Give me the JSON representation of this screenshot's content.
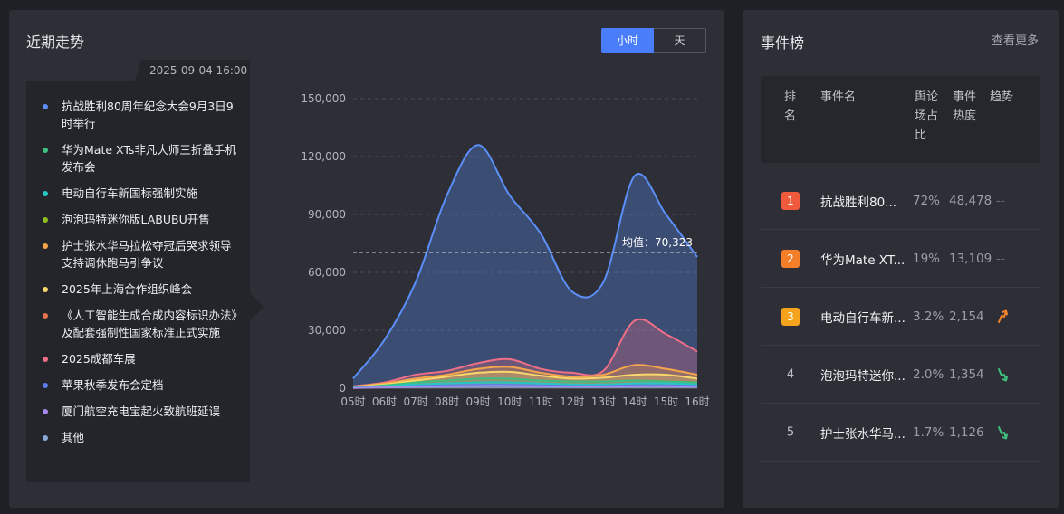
{
  "left": {
    "title": "近期走势",
    "toggle": {
      "hour": "小时",
      "day": "天"
    }
  },
  "tooltip": {
    "time": "2025-09-04 16:00",
    "items": [
      {
        "label": "抗战胜利80周年纪念大会9月3日9时举行",
        "color": "#5b8ff9"
      },
      {
        "label": "华为Mate XTs非凡大师三折叠手机发布会",
        "color": "#3fbf7f"
      },
      {
        "label": "电动自行车新国标强制实施",
        "color": "#26c6c6"
      },
      {
        "label": "泡泡玛特迷你版LABUBU开售",
        "color": "#8fbf1f"
      },
      {
        "label": "护士张水华马拉松夺冠后哭求领导支持调休跑马引争议",
        "color": "#f5a54b"
      },
      {
        "label": "2025年上海合作组织峰会",
        "color": "#f9d86b"
      },
      {
        "label": "《人工智能生成合成内容标识办法》及配套强制性国家标准正式实施",
        "color": "#e8744f"
      },
      {
        "label": "2025成都车展",
        "color": "#ee6f86"
      },
      {
        "label": "苹果秋季发布会定档",
        "color": "#5b7fe8"
      },
      {
        "label": "厦门航空充电宝起火致航班延误",
        "color": "#a58ae8"
      },
      {
        "label": "其他",
        "color": "#8aa8d8"
      }
    ]
  },
  "chart_data": {
    "type": "area",
    "categories": [
      "05时",
      "06时",
      "07时",
      "08时",
      "09时",
      "10时",
      "11时",
      "12时",
      "13时",
      "14时",
      "15时",
      "16时"
    ],
    "ylim": [
      0,
      150000
    ],
    "yticks": [
      0,
      30000,
      60000,
      90000,
      120000,
      150000
    ],
    "ytick_labels": [
      "0",
      "30,000",
      "60,000",
      "90,000",
      "120,000",
      "150,000"
    ],
    "average": {
      "value": 70323,
      "label": "均值：70,323"
    },
    "series": [
      {
        "name": "抗战胜利80周年纪念大会9月3日9时举行",
        "color": "#5b8ff9",
        "values": [
          5000,
          25000,
          55000,
          100000,
          126000,
          100000,
          80000,
          50000,
          55000,
          110000,
          90000,
          68000
        ]
      },
      {
        "name": "2025成都车展",
        "color": "#ee6f86",
        "values": [
          1000,
          3000,
          7000,
          9000,
          13000,
          15000,
          10000,
          8000,
          9000,
          35000,
          28000,
          19000
        ]
      },
      {
        "name": "护士张水华马拉松夺冠后哭求领导支持调休跑马引争议",
        "color": "#f5a54b",
        "values": [
          800,
          2500,
          5000,
          7000,
          10000,
          11000,
          8000,
          6000,
          7000,
          12000,
          10000,
          7000
        ]
      },
      {
        "name": "2025年上海合作组织峰会",
        "color": "#f9d86b",
        "values": [
          600,
          2000,
          4000,
          6000,
          8000,
          8500,
          6500,
          5000,
          5500,
          7000,
          7000,
          5000
        ]
      },
      {
        "name": "华为Mate XTs非凡大师三折叠手机发布会",
        "color": "#3fbf7f",
        "values": [
          400,
          1500,
          3000,
          4000,
          5000,
          5000,
          4000,
          3500,
          3500,
          4000,
          3500,
          3000
        ]
      },
      {
        "name": "电动自行车新国标强制实施",
        "color": "#26c6c6",
        "values": [
          300,
          1000,
          2000,
          2500,
          3000,
          3000,
          2500,
          2000,
          2000,
          2500,
          2500,
          2000
        ]
      },
      {
        "name": "苹果秋季发布会定档",
        "color": "#5b7fe8",
        "values": [
          200,
          600,
          1200,
          1500,
          1800,
          1800,
          1500,
          1200,
          1200,
          1500,
          1500,
          1200
        ]
      },
      {
        "name": "厦门航空充电宝起火致航班延误",
        "color": "#a58ae8",
        "values": [
          100,
          400,
          800,
          1000,
          1200,
          1200,
          1000,
          800,
          800,
          1000,
          1000,
          800
        ]
      }
    ]
  },
  "right": {
    "title": "事件榜",
    "more": "查看更多",
    "headers": {
      "rank": "排名",
      "name": "事件名",
      "share": "舆论场占比",
      "heat": "事件热度",
      "trend": "趋势"
    },
    "rows": [
      {
        "rank": "1",
        "name": "抗战胜利80...",
        "share": "72%",
        "heat": "48,478",
        "trend": "--",
        "badge_color": "#f05a3c",
        "trend_icon": "flat"
      },
      {
        "rank": "2",
        "name": "华为Mate XT...",
        "share": "19%",
        "heat": "13,109",
        "trend": "--",
        "badge_color": "#f57e28",
        "trend_icon": "flat"
      },
      {
        "rank": "3",
        "name": "电动自行车新...",
        "share": "3.2%",
        "heat": "2,154",
        "trend": "",
        "badge_color": "#f5a21c",
        "trend_icon": "up",
        "trend_color": "#f5842a"
      },
      {
        "rank": "4",
        "name": "泡泡玛特迷你...",
        "share": "2.0%",
        "heat": "1,354",
        "trend": "",
        "badge_color": "",
        "trend_icon": "down",
        "trend_color": "#3fbf7f"
      },
      {
        "rank": "5",
        "name": "护士张水华马...",
        "share": "1.7%",
        "heat": "1,126",
        "trend": "",
        "badge_color": "",
        "trend_icon": "down",
        "trend_color": "#3fbf7f"
      }
    ]
  }
}
